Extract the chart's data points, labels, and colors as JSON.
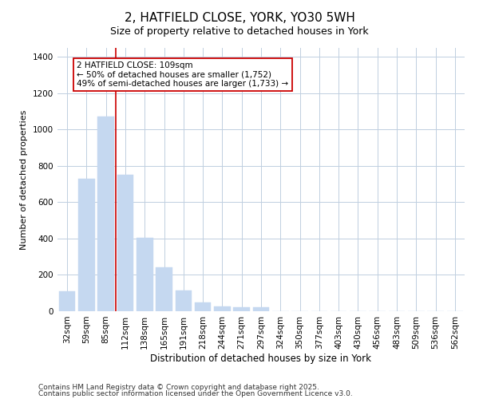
{
  "title": "2, HATFIELD CLOSE, YORK, YO30 5WH",
  "subtitle": "Size of property relative to detached houses in York",
  "xlabel": "Distribution of detached houses by size in York",
  "ylabel": "Number of detached properties",
  "categories": [
    "32sqm",
    "59sqm",
    "85sqm",
    "112sqm",
    "138sqm",
    "165sqm",
    "191sqm",
    "218sqm",
    "244sqm",
    "271sqm",
    "297sqm",
    "324sqm",
    "350sqm",
    "377sqm",
    "403sqm",
    "430sqm",
    "456sqm",
    "483sqm",
    "509sqm",
    "536sqm",
    "562sqm"
  ],
  "values": [
    110,
    730,
    1070,
    750,
    405,
    243,
    113,
    50,
    28,
    20,
    20,
    0,
    0,
    0,
    0,
    0,
    0,
    0,
    0,
    0,
    0
  ],
  "bar_color": "#c5d8f0",
  "bar_edge_color": "#c5d8f0",
  "annotation_box_text": "2 HATFIELD CLOSE: 109sqm\n← 50% of detached houses are smaller (1,752)\n49% of semi-detached houses are larger (1,733) →",
  "vline_color": "#cc0000",
  "vline_x": 2.5,
  "ylim": [
    0,
    1450
  ],
  "background_color": "#ffffff",
  "plot_bg_color": "#ffffff",
  "grid_color": "#c0cfe0",
  "footnote1": "Contains HM Land Registry data © Crown copyright and database right 2025.",
  "footnote2": "Contains public sector information licensed under the Open Government Licence v3.0.",
  "title_fontsize": 11,
  "subtitle_fontsize": 9,
  "annotation_fontsize": 7.5,
  "footnote_fontsize": 6.5,
  "xlabel_fontsize": 8.5,
  "ylabel_fontsize": 8,
  "tick_fontsize": 7.5
}
